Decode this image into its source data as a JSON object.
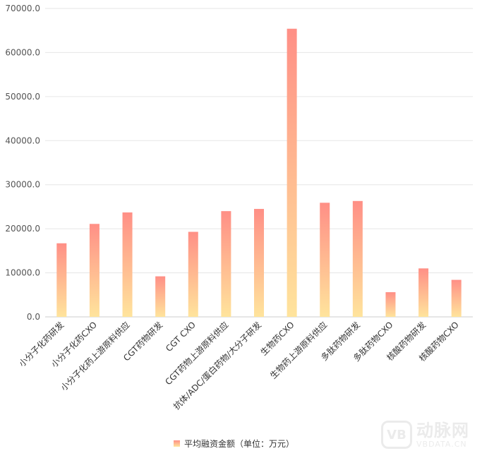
{
  "chart_data": {
    "type": "bar",
    "categories": [
      "小分子化药研发",
      "小分子化药CXO",
      "小分子化药上游原料供应",
      "CGT药物研发",
      "CGT CXO",
      "CGT药物上游原料供应",
      "抗体/ADC/蛋白药物/大分子研发",
      "生物药CXO",
      "生物药上游原料供应",
      "多肽药物研发",
      "多肽药物CXO",
      "核酸药物研发",
      "核酸药物CXO"
    ],
    "series": [
      {
        "name": "平均融资金额（单位：万元）",
        "values": [
          16700,
          21100,
          23700,
          9200,
          19300,
          24000,
          24500,
          65400,
          25900,
          26300,
          5600,
          11000,
          8400
        ]
      }
    ],
    "ylim": [
      0,
      70000
    ],
    "yticks": [
      "0.0",
      "10000.0",
      "20000.0",
      "30000.0",
      "40000.0",
      "50000.0",
      "60000.0",
      "70000.0"
    ],
    "grid": true,
    "legend_position": "bottom",
    "colors": {
      "bar_top": "#ff8f86",
      "bar_bottom": "#ffe49c",
      "grid": "#e6e6e6"
    }
  },
  "legend": {
    "label": "平均融资金额（单位：万元）"
  },
  "watermark": {
    "logo": "VB",
    "cn": "动脉网",
    "en": "VBDATA.CN"
  }
}
